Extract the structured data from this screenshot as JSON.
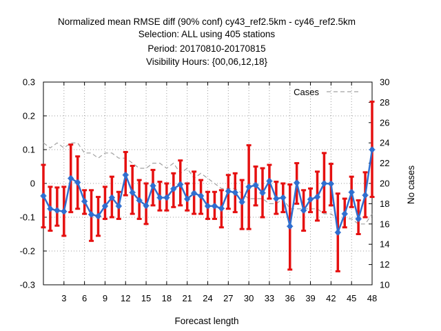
{
  "chart_data": {
    "type": "line",
    "title": [
      "Normalized mean RMSE diff (90% conf) cy43_ref2.5km - cy46_ref2.5km",
      "Selection: ALL using   405 stations",
      "Period: 20170810-20170815",
      "Visibility   Hours: {00,06,12,18}"
    ],
    "xlabel": "Forecast length",
    "ylabel": "",
    "y2label": "No cases",
    "xlim": [
      0,
      48
    ],
    "ylim": [
      -0.3,
      0.3
    ],
    "y2lim": [
      10,
      30
    ],
    "xticks": [
      "3",
      "6",
      "9",
      "12",
      "15",
      "18",
      "21",
      "24",
      "27",
      "30",
      "33",
      "36",
      "39",
      "42",
      "45",
      "48"
    ],
    "yticks": [
      "0.3",
      "0.2",
      "0.1",
      "0",
      "-0.1",
      "-0.2",
      "-0.3"
    ],
    "y2ticks": [
      "30",
      "28",
      "26",
      "24",
      "22",
      "20",
      "18",
      "16",
      "14",
      "12",
      "10"
    ],
    "grid": true,
    "legend": "top-right",
    "colors": {
      "diff": "#2f6fd0",
      "conf": "#e51010",
      "cases": "#a0a0a0"
    },
    "series": [
      {
        "name": "",
        "x": [
          0,
          1,
          2,
          3,
          4,
          5,
          6,
          7,
          8,
          9,
          10,
          11,
          12,
          13,
          14,
          15,
          16,
          17,
          18,
          19,
          20,
          21,
          22,
          23,
          24,
          25,
          26,
          27,
          28,
          29,
          30,
          31,
          32,
          33,
          34,
          35,
          36,
          37,
          38,
          39,
          40,
          41,
          42,
          43,
          44,
          45,
          46,
          47,
          48
        ],
        "values": [
          -0.037,
          -0.075,
          -0.08,
          -0.083,
          0.015,
          0.003,
          -0.053,
          -0.092,
          -0.097,
          -0.067,
          -0.042,
          -0.067,
          0.025,
          -0.027,
          -0.05,
          -0.066,
          -0.007,
          -0.042,
          -0.042,
          -0.016,
          -0.003,
          -0.046,
          -0.029,
          -0.037,
          -0.067,
          -0.067,
          -0.074,
          -0.023,
          -0.027,
          -0.055,
          -0.01,
          -0.005,
          -0.028,
          0.007,
          -0.045,
          -0.042,
          -0.127,
          0.002,
          -0.08,
          -0.047,
          -0.04,
          0,
          -0.001,
          -0.145,
          -0.09,
          -0.026,
          -0.105,
          -0.035,
          0.1
        ],
        "lower": [
          -0.13,
          -0.14,
          -0.125,
          -0.155,
          -0.085,
          -0.075,
          -0.09,
          -0.17,
          -0.155,
          -0.105,
          -0.1,
          -0.105,
          -0.035,
          -0.09,
          -0.105,
          -0.12,
          -0.065,
          -0.08,
          -0.08,
          -0.07,
          -0.065,
          -0.08,
          -0.09,
          -0.09,
          -0.105,
          -0.105,
          -0.13,
          -0.075,
          -0.085,
          -0.135,
          -0.135,
          -0.065,
          -0.1,
          -0.045,
          -0.09,
          -0.085,
          -0.255,
          -0.06,
          -0.14,
          -0.085,
          -0.11,
          -0.085,
          -0.065,
          -0.26,
          -0.13,
          -0.07,
          -0.15,
          -0.1,
          -0.04
        ],
        "upper": [
          0.055,
          -0.01,
          -0.012,
          -0.01,
          0.115,
          0.08,
          -0.02,
          -0.02,
          -0.04,
          -0.01,
          0.02,
          -0.025,
          0.093,
          0.052,
          0.01,
          0,
          0.04,
          0.005,
          0,
          0.03,
          0.068,
          0,
          0.035,
          0.01,
          -0.025,
          -0.025,
          -0.02,
          0.025,
          0.03,
          0.01,
          0.113,
          0.05,
          0.045,
          0.055,
          0.005,
          0,
          -0.003,
          0.06,
          -0.02,
          -0.015,
          0.035,
          0.09,
          0.058,
          -0.03,
          -0.045,
          0.02,
          -0.05,
          0.033,
          0.242
        ]
      },
      {
        "name": "Cases",
        "axis": "y2",
        "x": [
          0,
          1,
          2,
          3,
          4,
          5,
          6,
          7,
          8,
          9,
          10,
          11,
          12,
          13,
          14,
          15,
          16,
          17,
          18,
          19,
          20,
          21,
          22,
          23,
          24,
          25,
          26,
          27,
          28,
          29,
          30,
          31,
          32,
          33,
          34,
          35,
          36,
          37,
          38,
          39,
          40,
          41,
          42,
          43,
          44,
          45,
          46,
          47,
          48
        ],
        "values": [
          24,
          23.5,
          24,
          23.5,
          24,
          24,
          23,
          23,
          22.5,
          23,
          23,
          22.5,
          22.5,
          22,
          21.5,
          21.5,
          22,
          22,
          21.5,
          22,
          21,
          21.5,
          20.5,
          21,
          20.5,
          20,
          19.5,
          19.5,
          19.5,
          19,
          18.5,
          18.5,
          18.5,
          18,
          18,
          18.5,
          17.5,
          17.5,
          17.5,
          17.5,
          17.5,
          17,
          17,
          16.5,
          16.5,
          16.5,
          16,
          16,
          17
        ]
      }
    ]
  }
}
